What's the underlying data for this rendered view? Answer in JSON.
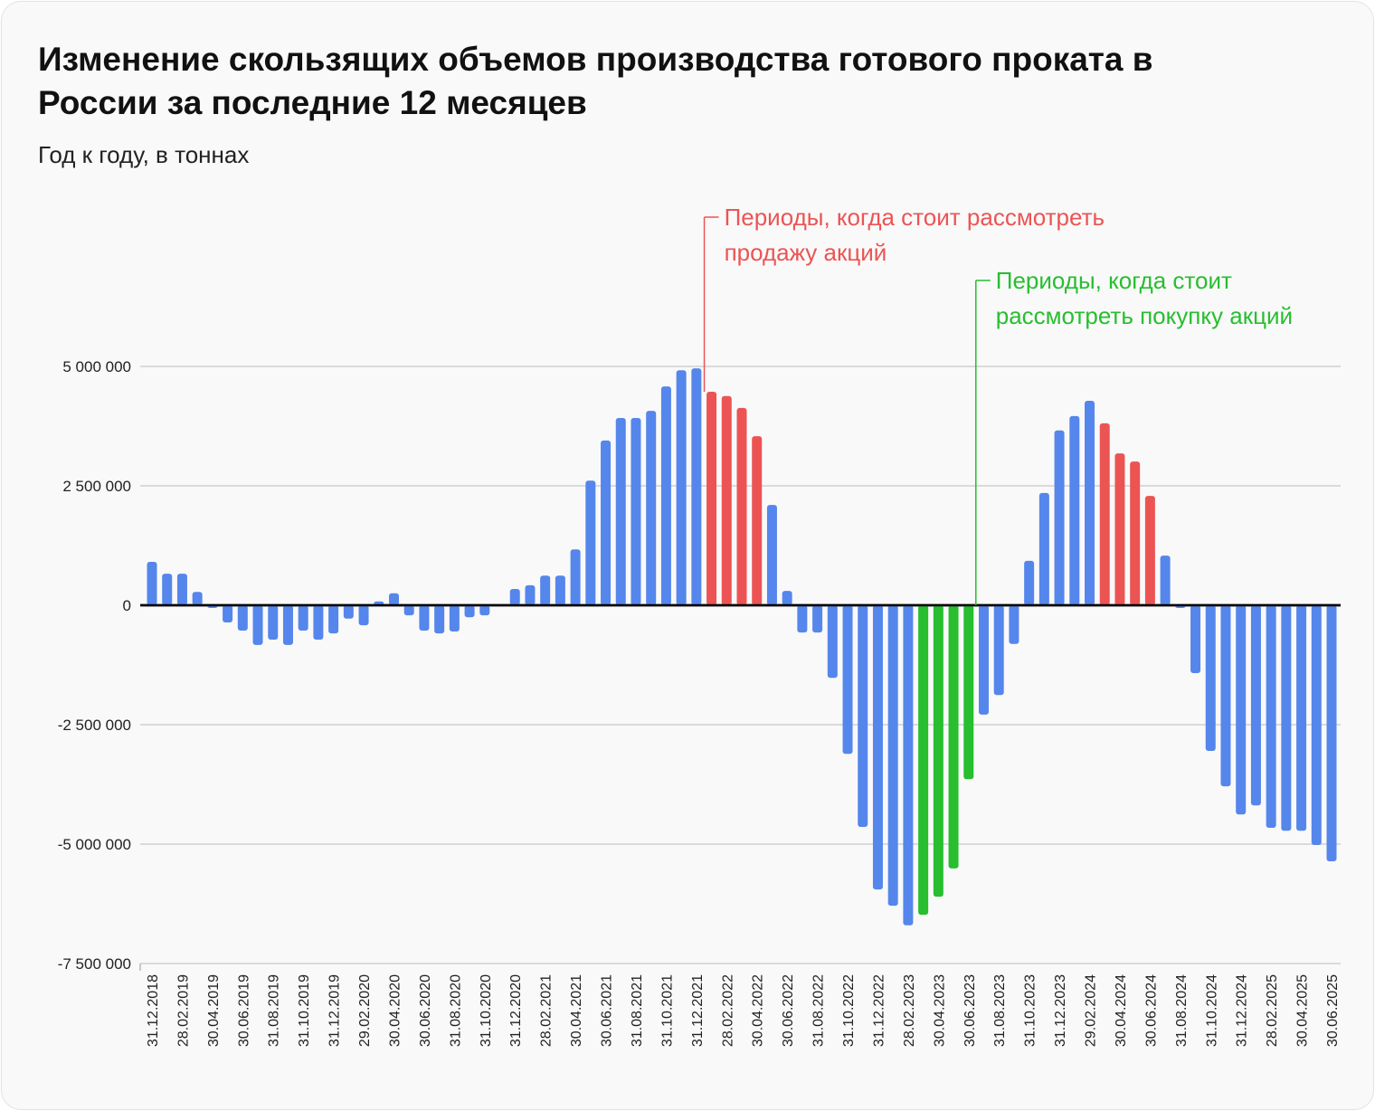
{
  "chart_data": {
    "type": "bar",
    "title": "Изменение скользящих объемов производства готового проката в России за последние 12 месяцев",
    "subtitle": "Год к году, в тоннах",
    "ylim": [
      -7500000,
      5000000
    ],
    "yticks": [
      5000000,
      2500000,
      0,
      -2500000,
      -5000000,
      -7500000
    ],
    "ytick_labels": [
      "5 000 000",
      "2 500 000",
      "0",
      "-2 500 000",
      "-5 000 000",
      "-7 500 000"
    ],
    "grid": true,
    "colors": {
      "default": "#5586EC",
      "sell": "#EC5454",
      "buy": "#27BE2F",
      "annotation_sell": "#EC5454",
      "annotation_buy": "#27BE2F"
    },
    "categories": [
      "31.12.2018",
      "31.01.2019",
      "28.02.2019",
      "31.03.2019",
      "30.04.2019",
      "31.05.2019",
      "30.06.2019",
      "31.07.2019",
      "31.08.2019",
      "30.09.2019",
      "31.10.2019",
      "30.11.2019",
      "31.12.2019",
      "31.01.2020",
      "29.02.2020",
      "31.03.2020",
      "30.04.2020",
      "31.05.2020",
      "30.06.2020",
      "31.07.2020",
      "31.08.2020",
      "30.09.2020",
      "31.10.2020",
      "30.11.2020",
      "31.12.2020",
      "31.01.2021",
      "28.02.2021",
      "31.03.2021",
      "30.04.2021",
      "31.05.2021",
      "30.06.2021",
      "31.07.2021",
      "31.08.2021",
      "30.09.2021",
      "31.10.2021",
      "30.11.2021",
      "31.12.2021",
      "31.01.2022",
      "28.02.2022",
      "31.03.2022",
      "30.04.2022",
      "31.05.2022",
      "30.06.2022",
      "31.07.2022",
      "31.08.2022",
      "30.09.2022",
      "31.10.2022",
      "30.11.2022",
      "31.12.2022",
      "31.01.2023",
      "28.02.2023",
      "31.03.2023",
      "30.04.2023",
      "31.05.2023",
      "30.06.2023",
      "31.07.2023",
      "31.08.2023",
      "30.09.2023",
      "31.10.2023",
      "30.11.2023",
      "31.12.2023",
      "31.01.2024",
      "29.02.2024",
      "31.03.2024",
      "30.04.2024",
      "31.05.2024",
      "30.06.2024",
      "31.07.2024",
      "31.08.2024",
      "30.09.2024",
      "31.10.2024",
      "30.11.2024",
      "31.12.2024",
      "31.01.2025",
      "28.02.2025",
      "31.03.2025",
      "30.04.2025",
      "31.05.2025",
      "30.06.2025"
    ],
    "values": [
      910000,
      660000,
      660000,
      280000,
      -40000,
      -360000,
      -530000,
      -830000,
      -720000,
      -830000,
      -530000,
      -720000,
      -590000,
      -280000,
      -420000,
      80000,
      250000,
      -210000,
      -530000,
      -590000,
      -550000,
      -250000,
      -210000,
      0,
      340000,
      420000,
      620000,
      620000,
      1170000,
      2610000,
      3450000,
      3920000,
      3920000,
      4070000,
      4580000,
      4920000,
      4960000,
      4470000,
      4380000,
      4130000,
      3540000,
      2100000,
      300000,
      -570000,
      -570000,
      -1520000,
      -3110000,
      -4640000,
      -5950000,
      -6290000,
      -6700000,
      -6480000,
      -6100000,
      -5510000,
      -3640000,
      -2290000,
      -1880000,
      -810000,
      930000,
      2350000,
      3660000,
      3960000,
      4280000,
      3810000,
      3180000,
      3010000,
      2290000,
      1040000,
      -40000,
      -1420000,
      -3050000,
      -3790000,
      -4380000,
      -4190000,
      -4660000,
      -4720000,
      -4720000,
      -5020000,
      -5360000
    ],
    "highlight": {
      "sell": [
        "31.01.2022",
        "28.02.2022",
        "31.03.2022",
        "30.04.2022",
        "31.03.2024",
        "30.04.2024",
        "31.05.2024",
        "30.06.2024"
      ],
      "buy": [
        "31.03.2023",
        "30.04.2023",
        "31.05.2023",
        "30.06.2023"
      ]
    },
    "xtick_labels": [
      "31.12.2018",
      "28.02.2019",
      "30.04.2019",
      "30.06.2019",
      "31.08.2019",
      "31.10.2019",
      "31.12.2019",
      "29.02.2020",
      "30.04.2020",
      "30.06.2020",
      "31.08.2020",
      "31.10.2020",
      "31.12.2020",
      "28.02.2021",
      "30.04.2021",
      "30.06.2021",
      "31.08.2021",
      "31.10.2021",
      "31.12.2021",
      "28.02.2022",
      "30.04.2022",
      "30.06.2022",
      "31.08.2022",
      "31.10.2022",
      "31.12.2022",
      "28.02.2023",
      "30.04.2023",
      "30.06.2023",
      "31.08.2023",
      "31.10.2023",
      "31.12.2023",
      "29.02.2024",
      "30.04.2024",
      "30.06.2024",
      "31.08.2024",
      "31.10.2024",
      "31.12.2024",
      "28.02.2025",
      "30.04.2025",
      "30.06.2025"
    ],
    "annotations": [
      {
        "type": "sell",
        "at": "31.01.2022",
        "lines": [
          "Периоды, когда стоит рассмотреть",
          "продажу акций"
        ]
      },
      {
        "type": "buy",
        "at": "30.06.2023",
        "lines": [
          "Периоды, когда стоит",
          "рассмотреть покупку акций"
        ]
      }
    ]
  }
}
